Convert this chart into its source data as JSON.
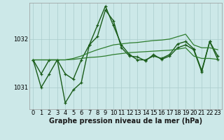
{
  "background_color": "#cce8e8",
  "grid_color": "#aacccc",
  "line_colors": [
    "#1a5c1a",
    "#1a5c1a",
    "#2e7d2e",
    "#2e7d2e"
  ],
  "ylim": [
    1030.55,
    1032.75
  ],
  "yticks": [
    1031,
    1032
  ],
  "xlim": [
    -0.5,
    23.5
  ],
  "xticks": [
    0,
    1,
    2,
    3,
    4,
    5,
    6,
    7,
    8,
    9,
    10,
    11,
    12,
    13,
    14,
    15,
    16,
    17,
    18,
    19,
    20,
    21,
    22,
    23
  ],
  "series": [
    [
      1031.57,
      1031.0,
      1031.28,
      1031.57,
      1030.68,
      1030.95,
      1031.1,
      1031.88,
      1032.05,
      1032.6,
      1032.38,
      1031.82,
      1031.65,
      1031.63,
      1031.55,
      1031.68,
      1031.58,
      1031.65,
      1031.82,
      1031.88,
      1031.78,
      1031.32,
      1031.95,
      1031.58
    ],
    [
      1031.57,
      1031.28,
      1031.57,
      1031.57,
      1031.28,
      1031.17,
      1031.57,
      1031.88,
      1032.28,
      1032.68,
      1032.28,
      1031.88,
      1031.68,
      1031.57,
      1031.57,
      1031.65,
      1031.6,
      1031.68,
      1031.9,
      1031.95,
      1031.8,
      1031.35,
      1031.95,
      1031.65
    ],
    [
      1031.57,
      1031.57,
      1031.57,
      1031.57,
      1031.57,
      1031.6,
      1031.65,
      1031.72,
      1031.78,
      1031.83,
      1031.88,
      1031.9,
      1031.92,
      1031.93,
      1031.95,
      1031.97,
      1031.98,
      1032.0,
      1032.05,
      1032.1,
      1031.88,
      1031.82,
      1031.82,
      1031.78
    ],
    [
      1031.57,
      1031.57,
      1031.57,
      1031.57,
      1031.57,
      1031.58,
      1031.6,
      1031.62,
      1031.63,
      1031.65,
      1031.68,
      1031.7,
      1031.72,
      1031.73,
      1031.74,
      1031.75,
      1031.76,
      1031.77,
      1031.79,
      1031.82,
      1031.65,
      1031.6,
      1031.6,
      1031.58
    ]
  ],
  "linewidths": [
    1.0,
    1.0,
    0.9,
    0.9
  ],
  "marker": "+",
  "marker_sizes": [
    3.5,
    3.5,
    0,
    0
  ],
  "tick_fontsize": 6,
  "label_fontsize": 7,
  "bottom_label": "Graphe pression niveau de la mer (hPa)"
}
